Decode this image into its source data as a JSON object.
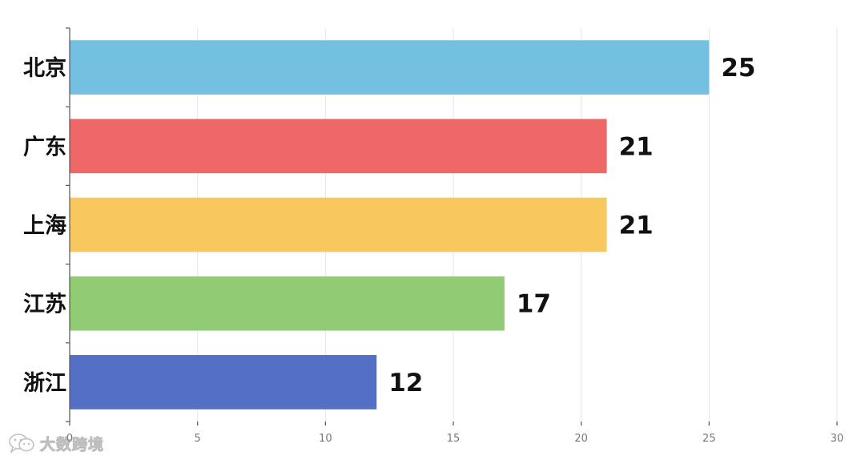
{
  "chart_data": {
    "type": "bar",
    "orientation": "horizontal",
    "categories": [
      "北京",
      "广东",
      "上海",
      "江苏",
      "浙江"
    ],
    "values": [
      25,
      21,
      21,
      17,
      12
    ],
    "colors": [
      "#74c0e0",
      "#ef6868",
      "#f8c75e",
      "#91cc75",
      "#5470c6"
    ],
    "xlim": [
      0,
      30
    ],
    "x_ticks": [
      0,
      5,
      10,
      15,
      20,
      25,
      30
    ],
    "grid": true,
    "title": "",
    "xlabel": "",
    "ylabel": ""
  },
  "watermark": {
    "text": "大数跨境",
    "icon": "wechat-logo-icon"
  }
}
